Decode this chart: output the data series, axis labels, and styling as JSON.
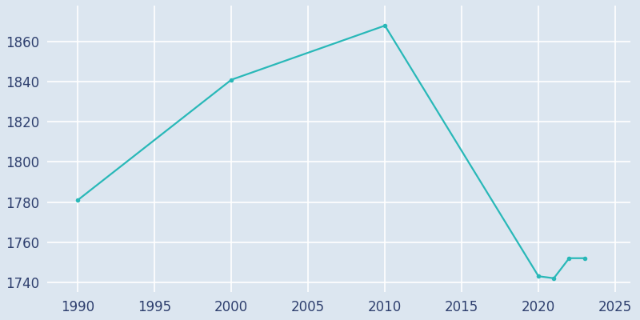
{
  "years": [
    1990,
    2000,
    2010,
    2020,
    2021,
    2022,
    2023
  ],
  "population": [
    1781,
    1841,
    1868,
    1743,
    1742,
    1752,
    1752
  ],
  "line_color": "#29b8b8",
  "marker": "o",
  "marker_size": 4,
  "background_color": "#dce6f0",
  "axes_background": "#dce6f0",
  "grid_color": "#f0f4f8",
  "xlim": [
    1988,
    2026
  ],
  "ylim": [
    1735,
    1878
  ],
  "xticks": [
    1990,
    1995,
    2000,
    2005,
    2010,
    2015,
    2020,
    2025
  ],
  "yticks": [
    1740,
    1760,
    1780,
    1800,
    1820,
    1840,
    1860
  ],
  "tick_color": "#2e3f6e",
  "tick_fontsize": 12,
  "line_width": 1.6,
  "figsize": [
    8.0,
    4.0
  ],
  "dpi": 100
}
